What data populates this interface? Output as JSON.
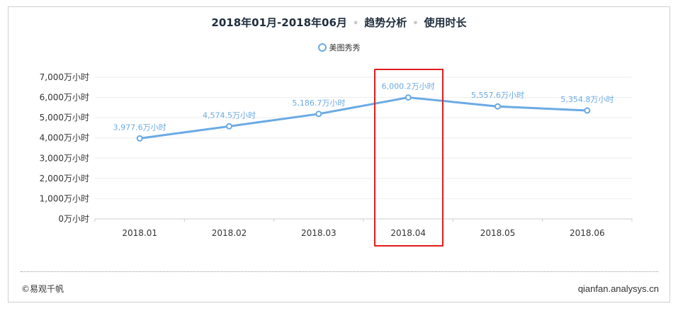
{
  "header": {
    "period": "2018年01月-2018年06月",
    "type": "趋势分析",
    "metric": "使用时长"
  },
  "legend": {
    "label": "美图秀秀"
  },
  "footer": {
    "copyright": "©易观千帆",
    "source": "qianfan.analysys.cn"
  },
  "colors": {
    "line": "#6aaae4",
    "label": "#6aaae4",
    "highlight": "#e11d1d",
    "axis": "#333333"
  },
  "chart_data": {
    "type": "line",
    "categories": [
      "2018.01",
      "2018.02",
      "2018.03",
      "2018.04",
      "2018.05",
      "2018.06"
    ],
    "series": [
      {
        "name": "美图秀秀",
        "values": [
          3977.6,
          4574.5,
          5186.7,
          6000.2,
          5557.6,
          5354.8
        ],
        "labels": [
          "3,977.6万小时",
          "4,574.5万小时",
          "5,186.7万小时",
          "6,000.2万小时",
          "5,557.6万小时",
          "5,354.8万小时"
        ]
      }
    ],
    "ylim": [
      0,
      7000
    ],
    "yticks": [
      0,
      1000,
      2000,
      3000,
      4000,
      5000,
      6000,
      7000
    ],
    "ytick_labels": [
      "0万小时",
      "1,000万小时",
      "2,000万小时",
      "3,000万小时",
      "4,000万小时",
      "5,000万小时",
      "6,000万小时",
      "7,000万小时"
    ],
    "highlighted_category": "2018.04",
    "grid": true,
    "legend_position": "top-center"
  }
}
